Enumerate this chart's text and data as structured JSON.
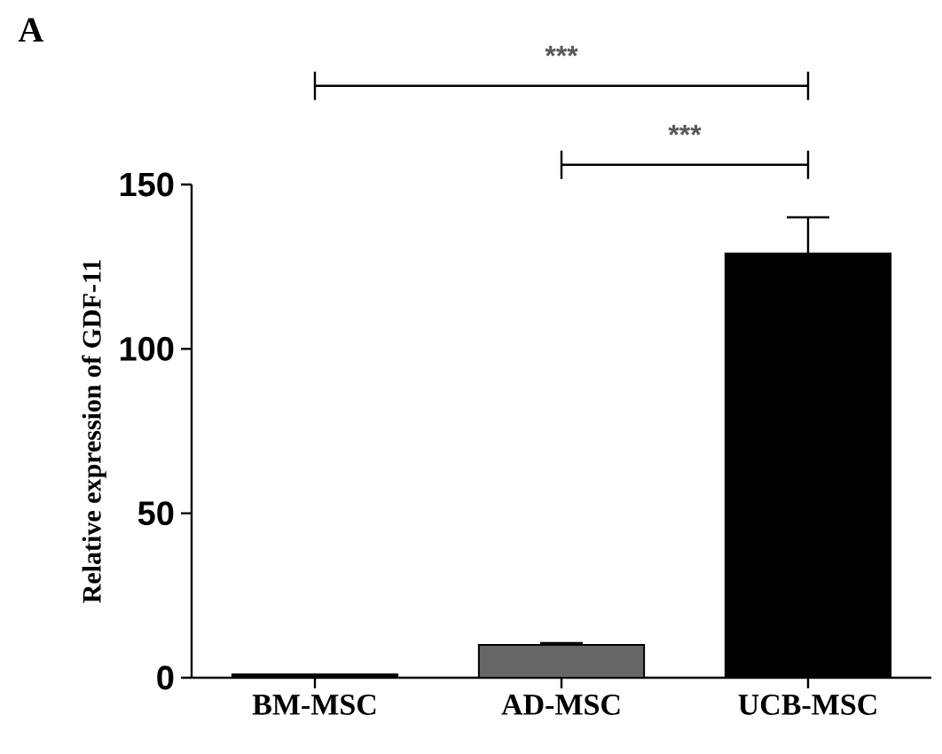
{
  "chart_data": {
    "type": "bar",
    "title": "A",
    "ylabel": "Relative expression of GDF-11",
    "categories": [
      "BM-MSC",
      "AD-MSC",
      "UCB-MSC"
    ],
    "values": [
      1,
      10,
      129
    ],
    "errors": [
      null,
      0.5,
      11
    ],
    "colors": [
      "#000000",
      "#666666",
      "#000000"
    ],
    "ylim": [
      0,
      150
    ],
    "yticks": [
      0,
      50,
      100,
      150
    ],
    "annotations": [
      "***",
      "***"
    ]
  }
}
